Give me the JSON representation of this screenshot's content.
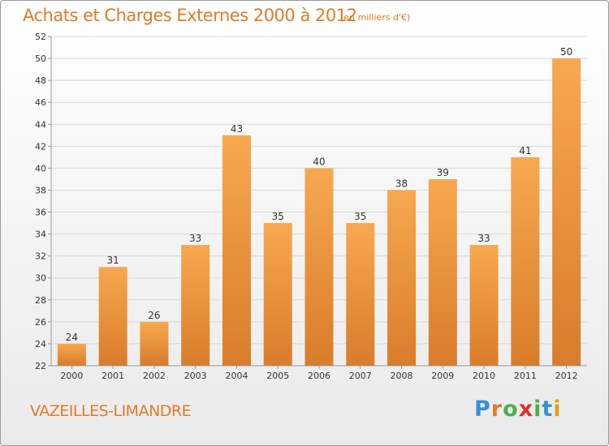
{
  "header": {
    "title": "Achats et Charges Externes 2000 à 2012",
    "subtitle": "(en milliers d'€)"
  },
  "footer": {
    "commune": "VAZEILLES-LIMANDRE",
    "logo_letters": [
      "P",
      "r",
      "o",
      "x",
      "i",
      "t",
      "i"
    ],
    "logo_colors": [
      "#3a8fd8",
      "#e07b28",
      "#4caf50",
      "#e0302a",
      "#4caf50",
      "#3a8fd8",
      "#e0a020"
    ]
  },
  "colors": {
    "bar_light": "#f7a84f",
    "bar_dark": "#d97c2b",
    "accent": "#e07b28",
    "grid": "#d8d8d8",
    "axis": "#999999"
  },
  "chart_data": {
    "type": "bar",
    "title": "Achats et Charges Externes 2000 à 2012",
    "subtitle": "(en milliers d'€)",
    "categories": [
      "2000",
      "2001",
      "2002",
      "2003",
      "2004",
      "2005",
      "2006",
      "2007",
      "2008",
      "2009",
      "2010",
      "2011",
      "2012"
    ],
    "values": [
      24,
      31,
      26,
      33,
      43,
      35,
      40,
      35,
      38,
      39,
      33,
      41,
      50
    ],
    "ylim": [
      22,
      52
    ],
    "yticks": [
      22,
      24,
      26,
      28,
      30,
      32,
      34,
      36,
      38,
      40,
      42,
      44,
      46,
      48,
      50,
      52
    ],
    "grid": true,
    "data_labels": true
  }
}
